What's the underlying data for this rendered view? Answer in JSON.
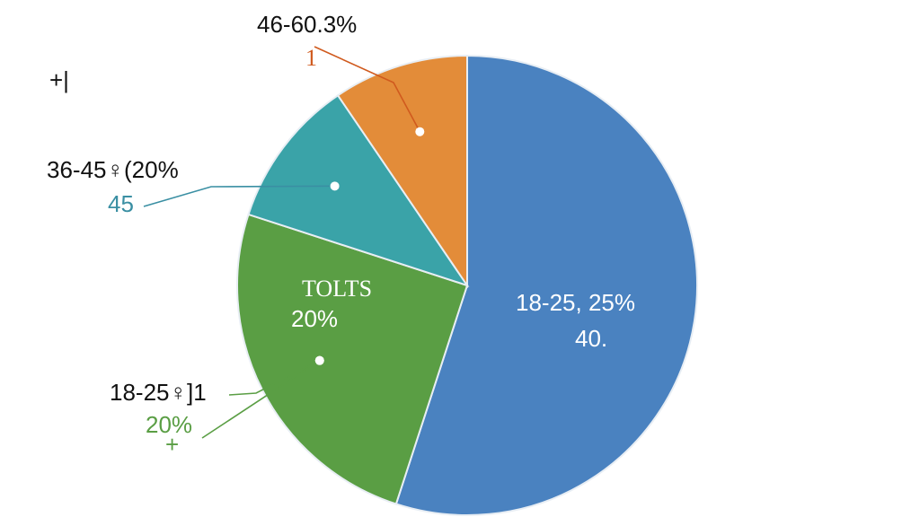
{
  "chart_data": {
    "type": "pie",
    "title": "",
    "slices": [
      {
        "value": 55,
        "color": "#4a82c0",
        "inner_label": "18-25, 25%",
        "inner_sub": "40."
      },
      {
        "value": 25,
        "color": "#5a9e44",
        "inner_label": "TOLTS",
        "inner_sub": "20%",
        "outer_label": "18-25♀]1",
        "outer_sub": "20%",
        "outer_mark": "+",
        "label_color": "#5a9e44"
      },
      {
        "value": 10.5,
        "color": "#3aa3a8",
        "outer_label": "36-45♀(20%",
        "outer_sub": "45",
        "label_color": "#3a8fa3"
      },
      {
        "value": 9.5,
        "color": "#e38c39",
        "outer_label": "46-60.3%",
        "outer_sub": "1",
        "label_color": "#d05a1e"
      }
    ],
    "corner_mark": "+|"
  }
}
